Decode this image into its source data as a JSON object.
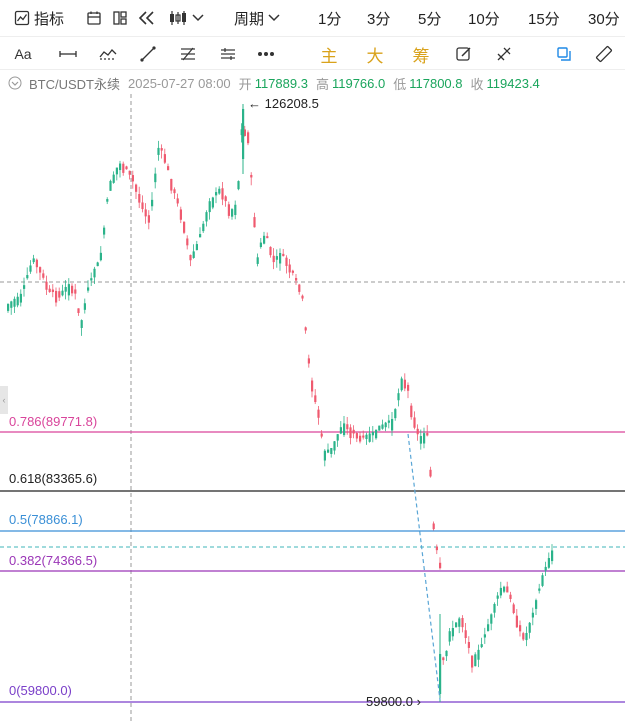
{
  "toolbar": {
    "indicators_label": "指标",
    "period_label": "周期",
    "intervals": [
      "1分",
      "3分",
      "5分",
      "10分",
      "15分",
      "30分"
    ]
  },
  "drawing_tools": {
    "text_tool": "Aa",
    "main_label": "主",
    "large_label": "大",
    "chips_label": "筹"
  },
  "info": {
    "symbol": "BTC/USDT永续",
    "datetime": "2025-07-27 08:00",
    "open_label": "开",
    "open": "117889.3",
    "high_label": "高",
    "high": "119766.0",
    "low_label": "低",
    "low": "117800.8",
    "close_label": "收",
    "close": "119423.4"
  },
  "chart": {
    "high_annotation": "126208.5",
    "low_annotation": "59800.0",
    "fib_levels": [
      {
        "label": "0.786(89771.8)",
        "color": "#d9459b"
      },
      {
        "label": "0.618(83365.6)",
        "color": "#222222"
      },
      {
        "label": "0.5(78866.1)",
        "color": "#3a8fd6"
      },
      {
        "label": "0.382(74366.5)",
        "color": "#9b36b7"
      },
      {
        "label": "0(59800.0)",
        "color": "#7a3fc9"
      }
    ],
    "up_color": "#2bb38a",
    "down_color": "#ef5a6f"
  }
}
